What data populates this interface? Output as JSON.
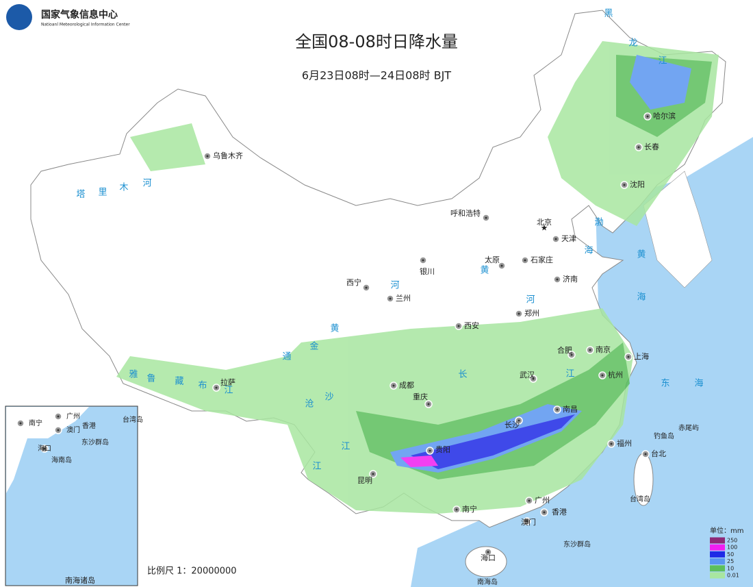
{
  "header": {
    "logo_cn": "国家气象信息中心",
    "logo_en": "Natioanl Meteorological Information Center",
    "title": "全国08-08时日降水量",
    "subtitle": "6月23日08时—24日08时 BJT"
  },
  "cities": [
    "乌鲁木齐",
    "哈尔滨",
    "长春",
    "沈阳",
    "呼和浩特",
    "北京",
    "天津",
    "石家庄",
    "太原",
    "银川",
    "济南",
    "西宁",
    "兰州",
    "郑州",
    "西安",
    "合肥",
    "南京",
    "上海",
    "拉萨",
    "成都",
    "武汉",
    "杭州",
    "重庆",
    "长沙",
    "南昌",
    "福州",
    "台北",
    "贵阳",
    "昆明",
    "广州",
    "香港",
    "澳门",
    "南宁",
    "海口"
  ],
  "places": [
    "台湾岛",
    "钓鱼岛",
    "赤尾屿",
    "东沙群岛",
    "南海岛"
  ],
  "water": [
    [
      "黑",
      "龙",
      "江"
    ],
    [
      "塔",
      "里",
      "木",
      "河"
    ],
    [
      "雅",
      "鲁",
      "藏",
      "布",
      "江"
    ],
    [
      "河",
      "黄",
      "黄",
      "河"
    ],
    [
      "长",
      "江"
    ],
    [
      "通",
      "金",
      "沙",
      "沧",
      "江",
      "江"
    ],
    [
      "渤",
      "海"
    ],
    [
      "黄",
      "海"
    ],
    [
      "东",
      "海"
    ]
  ],
  "inset": {
    "labels": [
      "南宁",
      "广州",
      "澳门",
      "香港",
      "台湾岛",
      "东沙群岛",
      "海口",
      "海南岛"
    ],
    "title": "南海诸岛"
  },
  "scale": "比例尺 1：20000000",
  "legend": {
    "title": "单位：mm",
    "items": [
      {
        "label": "250",
        "color": "#8e2a78"
      },
      {
        "label": "100",
        "color": "#f01ef0"
      },
      {
        "label": "50",
        "color": "#1e2ae6"
      },
      {
        "label": "25",
        "color": "#5a96f0"
      },
      {
        "label": "10",
        "color": "#5cbf5c"
      },
      {
        "label": "0.01",
        "color": "#a8e6a0"
      }
    ]
  }
}
